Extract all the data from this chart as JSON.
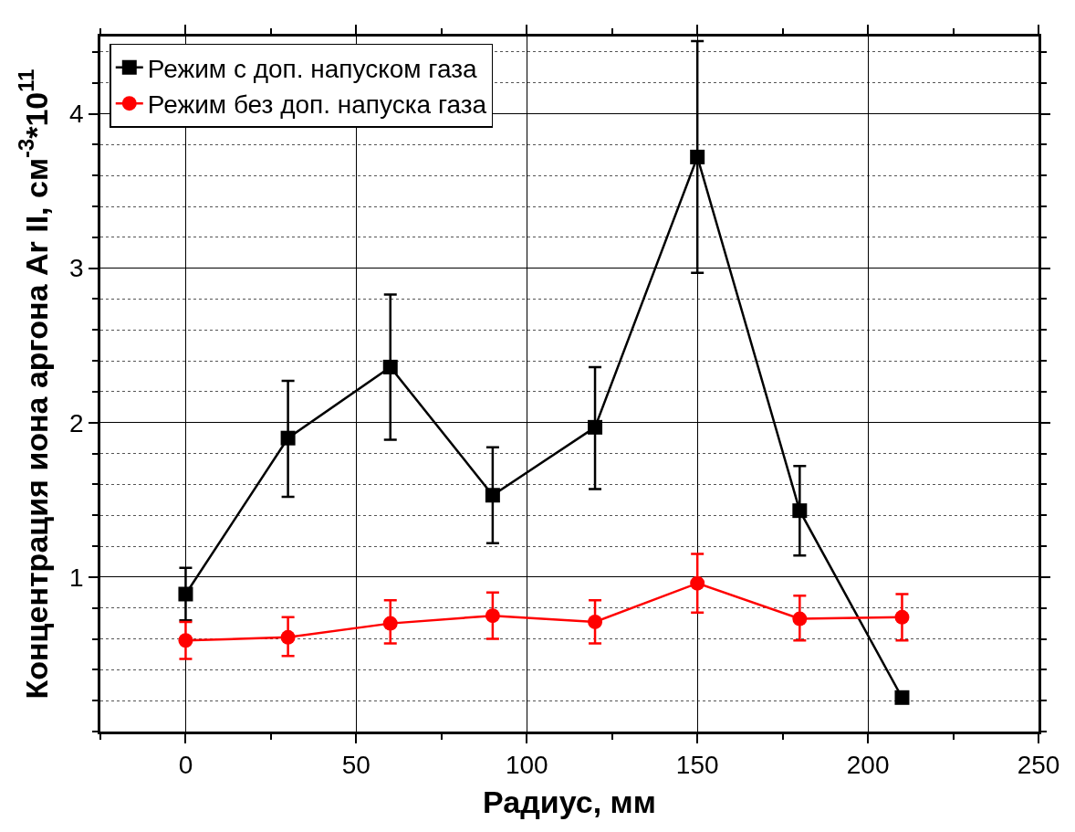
{
  "chart_data": {
    "type": "line",
    "xlabel": "Радиус, мм",
    "ylabel": "Концентрация иона аргона Ar II, см$^{-3}$*10$^{11}$",
    "x": [
      0,
      30,
      60,
      90,
      120,
      150,
      180,
      210
    ],
    "series": [
      {
        "name": "Режим с доп. напуском газа",
        "color": "#000000",
        "marker": "square",
        "values": [
          0.89,
          1.9,
          2.36,
          1.53,
          1.97,
          3.72,
          1.43,
          0.22
        ],
        "errors": [
          [
            0.72,
            1.06
          ],
          [
            1.52,
            2.27
          ],
          [
            1.89,
            2.83
          ],
          [
            1.22,
            1.84
          ],
          [
            1.57,
            2.36
          ],
          [
            2.97,
            4.47
          ],
          [
            1.14,
            1.72
          ],
          [
            0.22,
            0.25
          ]
        ]
      },
      {
        "name": "Режим без доп. напуска газа",
        "color": "#ff0000",
        "marker": "circle",
        "values": [
          0.59,
          0.61,
          0.7,
          0.75,
          0.71,
          0.96,
          0.73,
          0.74
        ],
        "errors": [
          [
            0.47,
            0.71
          ],
          [
            0.49,
            0.74
          ],
          [
            0.57,
            0.85
          ],
          [
            0.6,
            0.9
          ],
          [
            0.57,
            0.85
          ],
          [
            0.77,
            1.15
          ],
          [
            0.59,
            0.88
          ],
          [
            0.59,
            0.89
          ]
        ]
      }
    ],
    "xlim": [
      -25,
      250
    ],
    "xticks": [
      0,
      50,
      100,
      150,
      200,
      250
    ],
    "ylim": [
      0,
      4.5
    ],
    "yticks": [
      1,
      2,
      3,
      4
    ],
    "grid": true,
    "legend": "top left",
    "line_style": "solid"
  }
}
